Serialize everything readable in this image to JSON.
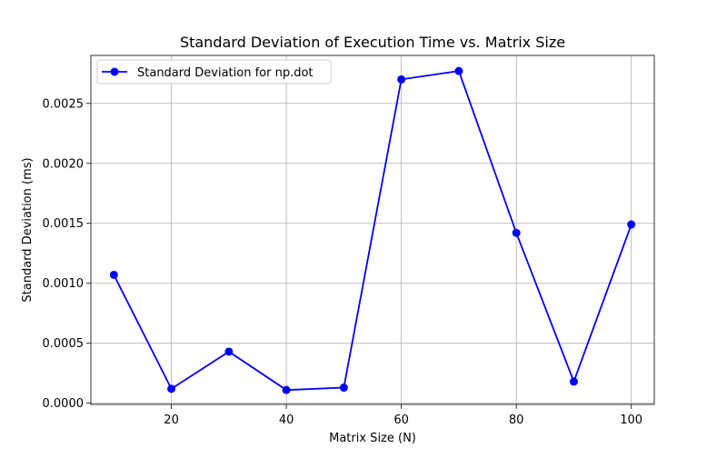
{
  "chart_data": {
    "type": "line",
    "title": "Standard Deviation of Execution Time vs. Matrix Size",
    "xlabel": "Matrix Size (N)",
    "ylabel": "Standard Deviation (ms)",
    "xlim": [
      6,
      104
    ],
    "ylim": [
      -1e-05,
      0.0029
    ],
    "grid": true,
    "legend_position": "top-left",
    "x_ticks": [
      20,
      40,
      60,
      80,
      100
    ],
    "x_tick_labels": [
      "20",
      "40",
      "60",
      "80",
      "100"
    ],
    "y_ticks": [
      0.0,
      0.0005,
      0.001,
      0.0015,
      0.002,
      0.0025
    ],
    "y_tick_labels": [
      "0.0000",
      "0.0005",
      "0.0010",
      "0.0015",
      "0.0020",
      "0.0025"
    ],
    "series": [
      {
        "name": "Standard Deviation for np.dot",
        "color": "#0000ff",
        "marker": "circle",
        "x": [
          10,
          20,
          30,
          40,
          50,
          60,
          70,
          80,
          90,
          100
        ],
        "y": [
          0.00107,
          0.00012,
          0.00043,
          0.00011,
          0.00013,
          0.0027,
          0.00277,
          0.00142,
          0.00018,
          0.00149
        ]
      }
    ]
  }
}
